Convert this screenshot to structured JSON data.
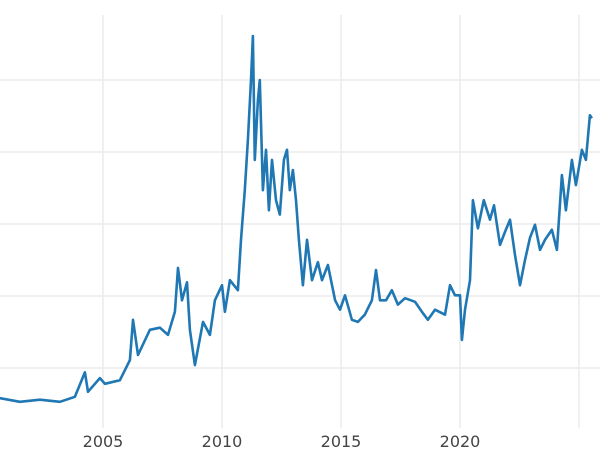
{
  "chart_data": {
    "type": "line",
    "title": "",
    "xlabel": "",
    "ylabel": "",
    "xlim": [
      2000.67,
      2025.6
    ],
    "ylim": [
      0,
      60
    ],
    "grid": true,
    "y_gridlines": [
      10,
      20,
      30,
      40,
      50
    ],
    "x_ticks": [
      2005,
      2010,
      2015,
      2020,
      2025
    ],
    "x_tick_labels": [
      "2005",
      "2010",
      "2015",
      "2020",
      ""
    ],
    "line_color": "#1f77b4",
    "series": [
      {
        "x": [
          2000.67,
          2001.51,
          2002.35,
          2003.19,
          2003.82,
          2004.24,
          2004.37,
          2004.87,
          2005.08,
          2005.71,
          2006.13,
          2006.26,
          2006.47,
          2006.97,
          2007.39,
          2007.73,
          2008.02,
          2008.15,
          2008.32,
          2008.53,
          2008.65,
          2008.86,
          2009.2,
          2009.49,
          2009.7,
          2010.0,
          2010.12,
          2010.33,
          2010.67,
          2010.8,
          2010.96,
          2011.09,
          2011.22,
          2011.3,
          2011.38,
          2011.51,
          2011.59,
          2011.72,
          2011.85,
          2011.97,
          2012.1,
          2012.27,
          2012.43,
          2012.6,
          2012.73,
          2012.85,
          2012.98,
          2013.11,
          2013.23,
          2013.4,
          2013.57,
          2013.78,
          2014.03,
          2014.2,
          2014.45,
          2014.75,
          2014.96,
          2015.17,
          2015.46,
          2015.71,
          2016.0,
          2016.3,
          2016.47,
          2016.64,
          2016.89,
          2017.14,
          2017.39,
          2017.69,
          2018.11,
          2018.4,
          2018.65,
          2018.95,
          2019.37,
          2019.58,
          2019.79,
          2020.0,
          2020.08,
          2020.21,
          2020.42,
          2020.54,
          2020.75,
          2021.0,
          2021.26,
          2021.43,
          2021.68,
          2021.89,
          2022.1,
          2022.31,
          2022.52,
          2022.73,
          2022.94,
          2023.15,
          2023.36,
          2023.57,
          2023.86,
          2024.07,
          2024.28,
          2024.45,
          2024.7,
          2024.87,
          2025.12,
          2025.29,
          2025.46,
          2025.54
        ],
        "y": [
          5.8,
          5.3,
          5.6,
          5.3,
          6.0,
          9.4,
          6.7,
          8.6,
          7.8,
          8.3,
          11.1,
          16.7,
          11.8,
          15.3,
          15.6,
          14.6,
          17.8,
          23.9,
          19.4,
          21.9,
          15.3,
          10.4,
          16.4,
          14.6,
          19.4,
          21.5,
          17.8,
          22.2,
          20.8,
          27.8,
          34.7,
          41.7,
          50.0,
          56.1,
          38.9,
          47.2,
          50.0,
          34.7,
          40.3,
          31.9,
          38.9,
          33.3,
          31.3,
          38.9,
          40.3,
          34.7,
          37.5,
          33.3,
          27.8,
          21.5,
          27.8,
          22.2,
          24.7,
          22.2,
          24.3,
          19.4,
          18.1,
          20.1,
          16.7,
          16.4,
          17.4,
          19.4,
          23.6,
          19.4,
          19.4,
          20.8,
          18.8,
          19.7,
          19.2,
          17.8,
          16.7,
          18.1,
          17.4,
          21.5,
          20.1,
          20.1,
          13.9,
          18.1,
          22.2,
          33.3,
          29.4,
          33.3,
          30.6,
          32.6,
          27.1,
          28.9,
          30.6,
          25.7,
          21.5,
          25.0,
          28.1,
          29.9,
          26.4,
          27.8,
          29.2,
          26.4,
          36.8,
          31.9,
          38.9,
          35.4,
          40.3,
          38.9,
          45.1,
          44.7
        ]
      }
    ]
  }
}
